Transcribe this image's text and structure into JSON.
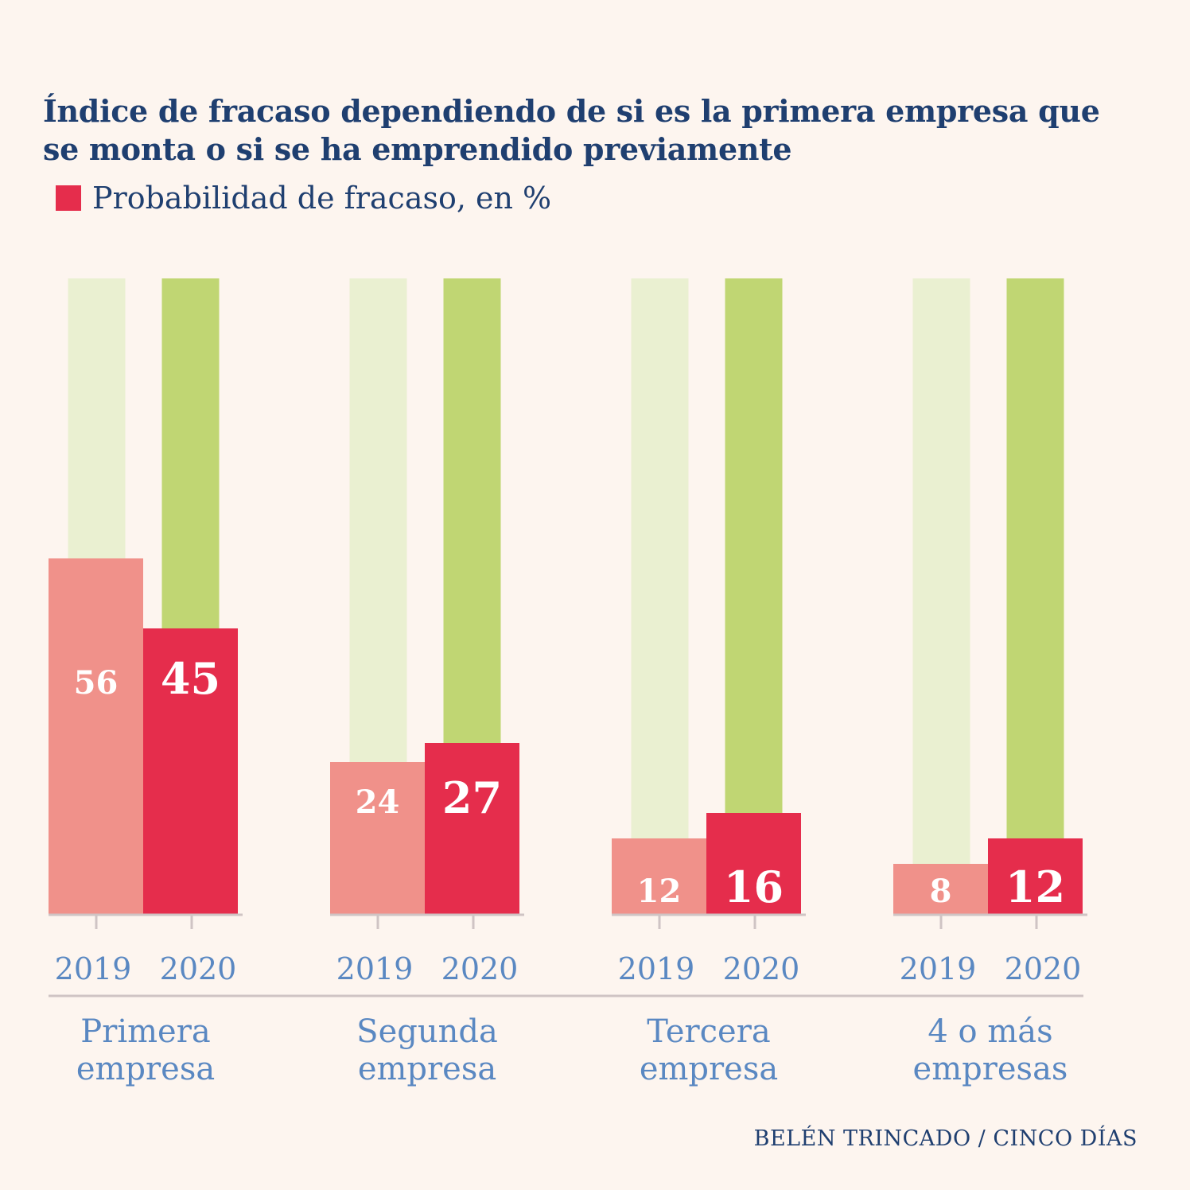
{
  "title": "Índice de fracaso dependiendo de si es la primera empresa que se monta o si se ha emprendido previamente",
  "legend": {
    "label": "Probabilidad de fracaso, en %",
    "color": "#e52d4c"
  },
  "source": "BELÉN TRINCADO / CINCO DÍAS",
  "colors": {
    "bar_2019": "#f0918a",
    "bar_2020": "#e52d4c",
    "bg_2019": "#eaf0d1",
    "bg_2020": "#c0d673",
    "axis_label": "#5a88c2",
    "axis_line": "#cfc4c4"
  },
  "chart_data": {
    "type": "bar",
    "categories": [
      "Primera\nempresa",
      "Segunda\nempresa",
      "Tercera\nempresa",
      "4 o más\nempresas"
    ],
    "x_sublabels": [
      "2019",
      "2020"
    ],
    "series": [
      {
        "values": [
          56,
          24,
          12,
          8
        ]
      },
      {
        "values": [
          45,
          27,
          16,
          12
        ]
      }
    ],
    "ylim": [
      0,
      100
    ],
    "title": "Índice de fracaso dependiendo de si es la primera empresa que se monta o si se ha emprendido previamente",
    "ylabel": "Probabilidad de fracaso, en %",
    "grid": false,
    "legend_position": "top-left"
  }
}
